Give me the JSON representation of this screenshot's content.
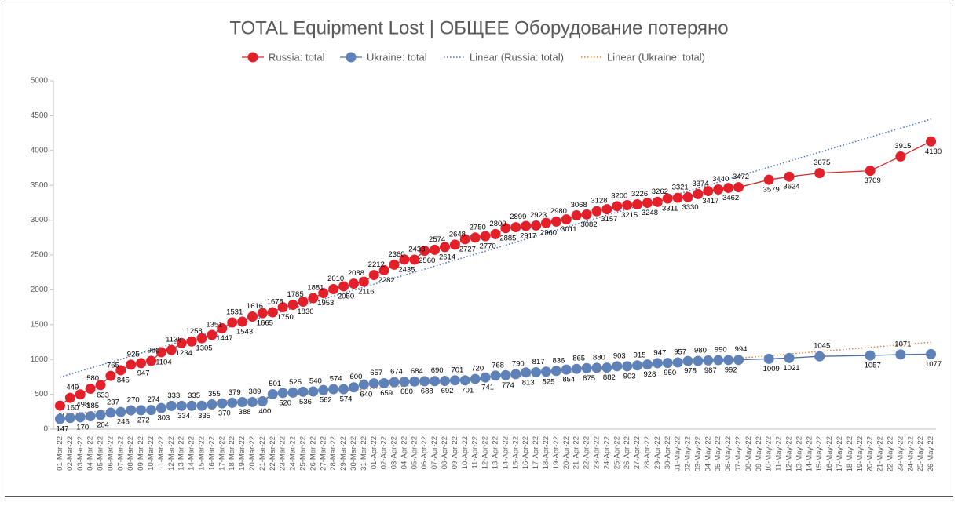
{
  "chart_data": {
    "type": "line",
    "title": "TOTAL Equipment Lost | ОБЩЕЕ Оборудование потеряно",
    "categories": [
      "01-Mar-22",
      "02-Mar-22",
      "03-Mar-22",
      "04-Mar-22",
      "05-Mar-22",
      "06-Mar-22",
      "07-Mar-22",
      "08-Mar-22",
      "09-Mar-22",
      "10-Mar-22",
      "11-Mar-22",
      "12-Mar-22",
      "13-Mar-22",
      "14-Mar-22",
      "15-Mar-22",
      "16-Mar-22",
      "17-Mar-22",
      "18-Mar-22",
      "19-Mar-22",
      "20-Mar-22",
      "21-Mar-22",
      "22-Mar-22",
      "23-Mar-22",
      "24-Mar-22",
      "25-Mar-22",
      "26-Mar-22",
      "27-Mar-22",
      "28-Mar-22",
      "29-Mar-22",
      "30-Mar-22",
      "31-Mar-22",
      "01-Apr-22",
      "02-Apr-22",
      "03-Apr-22",
      "04-Apr-22",
      "05-Apr-22",
      "06-Apr-22",
      "07-Apr-22",
      "08-Apr-22",
      "09-Apr-22",
      "10-Apr-22",
      "11-Apr-22",
      "12-Apr-22",
      "13-Apr-22",
      "14-Apr-22",
      "15-Apr-22",
      "16-Apr-22",
      "17-Apr-22",
      "18-Apr-22",
      "19-Apr-22",
      "20-Apr-22",
      "21-Apr-22",
      "22-Apr-22",
      "23-Apr-22",
      "24-Apr-22",
      "25-Apr-22",
      "26-Apr-22",
      "27-Apr-22",
      "28-Apr-22",
      "29-Apr-22",
      "30-Apr-22",
      "01-May-22",
      "02-May-22",
      "03-May-22",
      "04-May-22",
      "05-May-22",
      "06-May-22",
      "07-May-22",
      "08-May-22",
      "09-May-22",
      "10-May-22",
      "11-May-22",
      "12-May-22",
      "13-May-22",
      "14-May-22",
      "15-May-22",
      "16-May-22",
      "17-May-22",
      "18-May-22",
      "19-May-22",
      "20-May-22",
      "21-May-22",
      "22-May-22",
      "23-May-22",
      "24-May-22",
      "25-May-22",
      "26-May-22"
    ],
    "series": [
      {
        "name": "Russia: total",
        "color": "#e3202a",
        "line_color": "#d42a2a",
        "values": [
          337,
          449,
          498,
          580,
          633,
          765,
          845,
          925,
          947,
          980,
          1104,
          1136,
          1234,
          1258,
          1305,
          1351,
          1447,
          1531,
          1543,
          1616,
          1665,
          1678,
          1750,
          1785,
          1830,
          1881,
          1953,
          2010,
          2050,
          2088,
          2116,
          2212,
          2282,
          2360,
          2435,
          2433,
          2560,
          2574,
          2614,
          2648,
          2727,
          2750,
          2770,
          2800,
          2885,
          2899,
          2917,
          2923,
          2960,
          2980,
          3011,
          3068,
          3082,
          3128,
          3157,
          3200,
          3215,
          3226,
          3248,
          3262,
          3311,
          3321,
          3330,
          3374,
          3417,
          3440,
          3462,
          3472,
          null,
          null,
          3579,
          null,
          3624,
          null,
          null,
          3675,
          null,
          null,
          null,
          null,
          3709,
          null,
          null,
          3915,
          null,
          null,
          4130
        ]
      },
      {
        "name": "Ukraine: total",
        "color": "#5e82b8",
        "line_color": "#4a6fa5",
        "values": [
          147,
          160,
          170,
          185,
          204,
          237,
          246,
          270,
          272,
          274,
          303,
          333,
          334,
          335,
          335,
          355,
          370,
          379,
          388,
          389,
          400,
          501,
          520,
          525,
          536,
          540,
          562,
          574,
          574,
          600,
          640,
          657,
          659,
          674,
          680,
          684,
          688,
          690,
          692,
          701,
          701,
          720,
          741,
          768,
          774,
          790,
          813,
          817,
          825,
          836,
          854,
          865,
          875,
          880,
          882,
          903,
          903,
          915,
          928,
          947,
          950,
          957,
          978,
          980,
          987,
          990,
          992,
          994,
          null,
          null,
          1009,
          null,
          1021,
          null,
          null,
          1045,
          null,
          null,
          null,
          null,
          1057,
          null,
          null,
          1071,
          null,
          null,
          1077
        ]
      }
    ],
    "trendlines": [
      {
        "name": "Linear (Russia: total)",
        "color": "#4472c4",
        "series": 0
      },
      {
        "name": "Linear (Ukraine: total)",
        "color": "#ed7d31",
        "series": 1
      }
    ],
    "ylim": [
      0,
      5000
    ],
    "yticks": [
      0,
      500,
      1000,
      1500,
      2000,
      2500,
      3000,
      3500,
      4000,
      4500,
      5000
    ],
    "grid": false,
    "legend": "top",
    "data_labels": true
  }
}
